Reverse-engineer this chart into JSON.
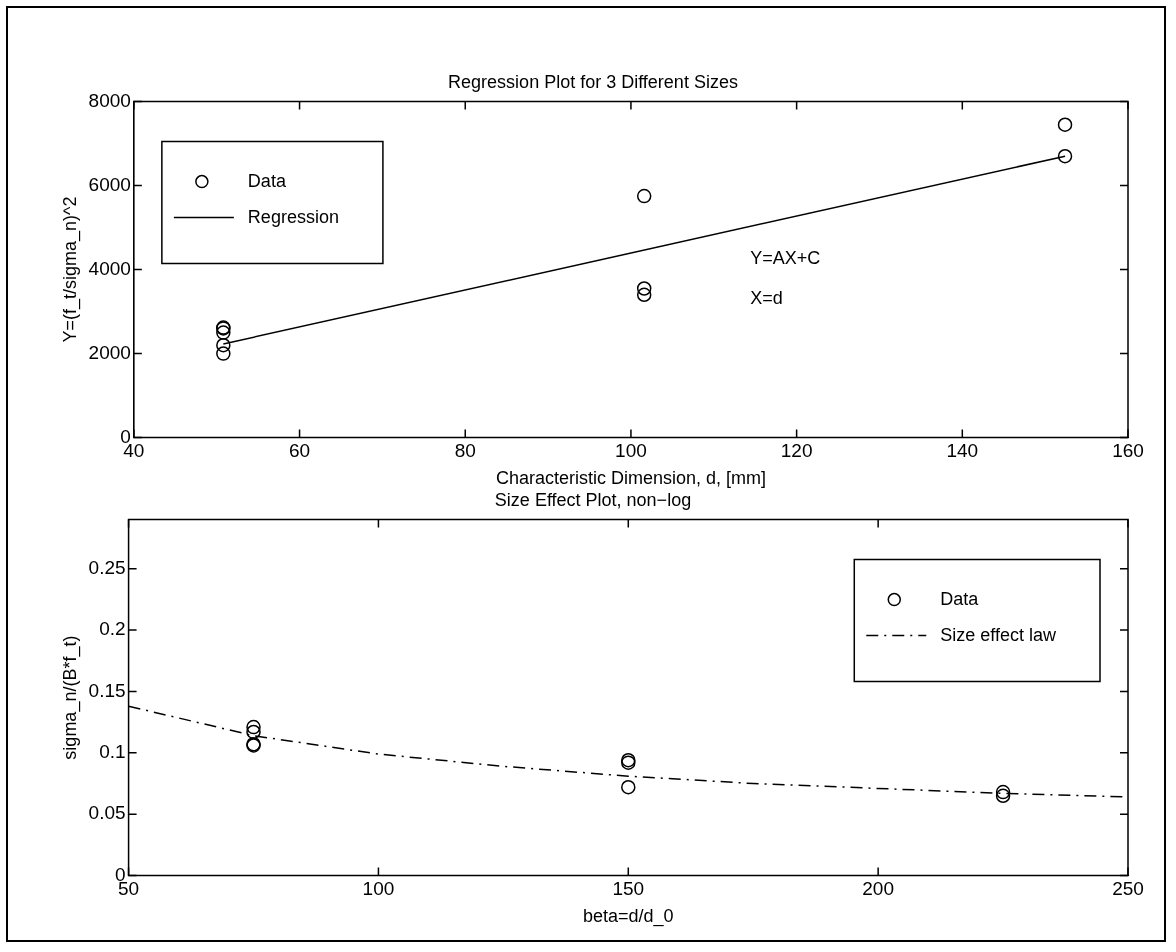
{
  "chart_data": [
    {
      "type": "scatter",
      "title": "Regression Plot for 3 Different Sizes",
      "xlabel": "Characteristic Dimension, d, [mm]",
      "ylabel": "Y=(f_t/sigma_n)^2",
      "xlim": [
        40,
        160
      ],
      "xticks": [
        40,
        60,
        80,
        100,
        120,
        140,
        160
      ],
      "ylim": [
        0,
        8000
      ],
      "yticks": [
        0,
        2000,
        4000,
        6000,
        8000
      ],
      "grid": false,
      "legend": "top left",
      "annotations": [
        "Y=AX+C",
        "X=d"
      ],
      "series": [
        {
          "name": "Data",
          "marker": "circle",
          "color": "#000000",
          "x": [
            50.8,
            50.8,
            50.8,
            50.8,
            50.8,
            101.6,
            101.6,
            101.6,
            152.4,
            152.4
          ],
          "values": [
            2000,
            2200,
            2500,
            2600,
            2620,
            5750,
            3550,
            3400,
            7450,
            6700
          ]
        },
        {
          "name": "Regression",
          "type": "line",
          "marker": "none",
          "color": "#000000",
          "line_style": "solid",
          "x": [
            50.8,
            152.4
          ],
          "values": [
            2230,
            6700
          ]
        }
      ]
    },
    {
      "type": "scatter",
      "title": "Size Effect Plot, non−log",
      "xlabel": "beta=d/d_0",
      "ylabel": "sigma_n/(B*f_t)",
      "xlim": [
        50,
        250
      ],
      "xticks": [
        50,
        100,
        150,
        200,
        250
      ],
      "ylim": [
        0,
        0.29
      ],
      "yticks": [
        0,
        0.05,
        0.1,
        0.15,
        0.2,
        0.25
      ],
      "grid": false,
      "legend": "top right",
      "series": [
        {
          "name": "Data",
          "marker": "circle",
          "color": "#000000",
          "x": [
            75,
            75,
            75,
            75,
            150,
            150,
            150,
            225,
            225
          ],
          "values": [
            0.121,
            0.117,
            0.107,
            0.106,
            0.094,
            0.092,
            0.072,
            0.068,
            0.065
          ]
        },
        {
          "name": "Size effect law",
          "type": "line",
          "marker": "none",
          "color": "#000000",
          "line_style": "dashed",
          "x": [
            50,
            75,
            100,
            125,
            150,
            175,
            200,
            225,
            250
          ],
          "values": [
            0.138,
            0.114,
            0.099,
            0.089,
            0.081,
            0.075,
            0.071,
            0.067,
            0.064
          ]
        }
      ]
    }
  ]
}
